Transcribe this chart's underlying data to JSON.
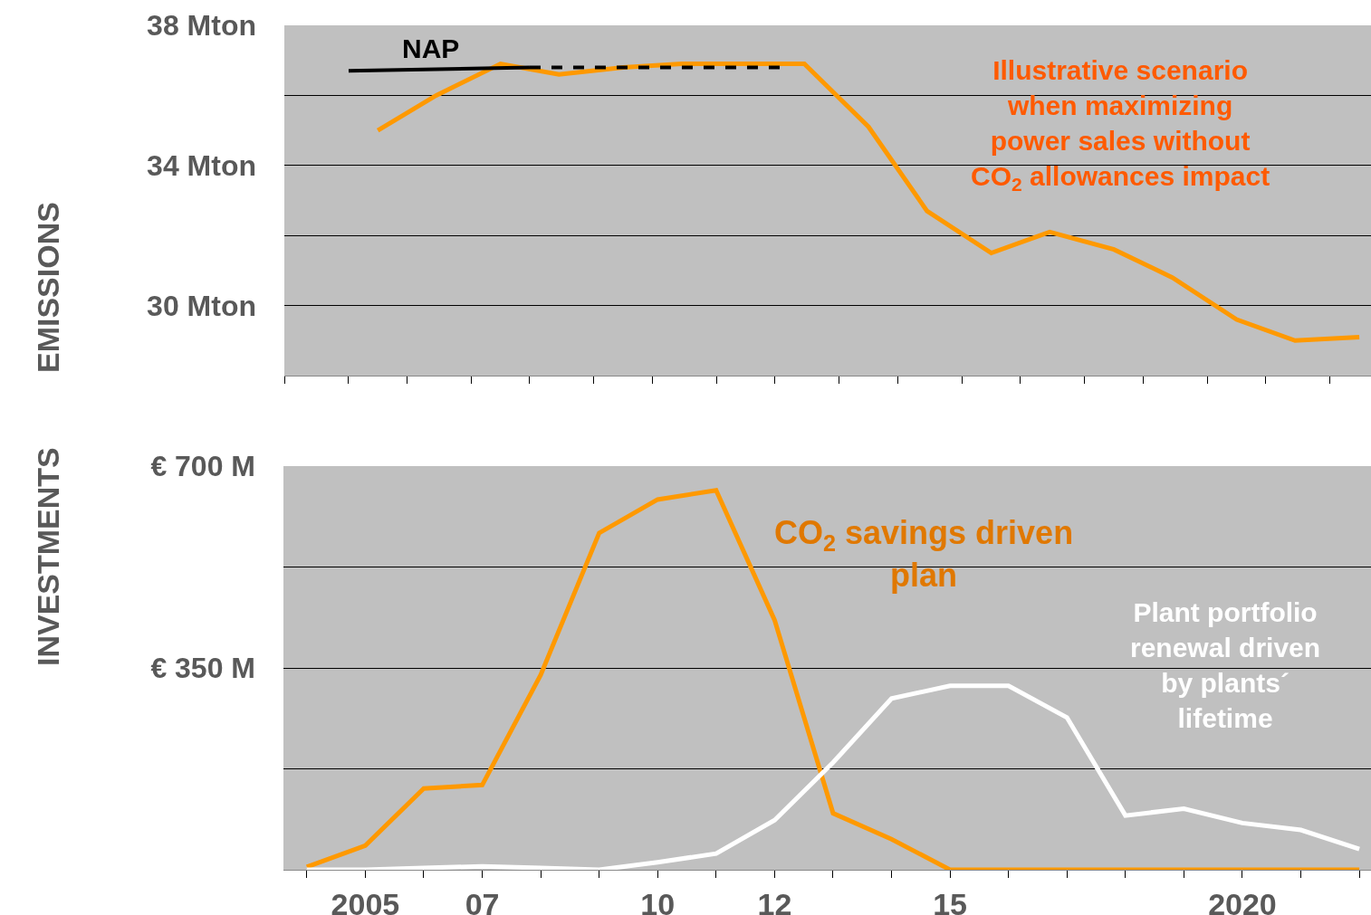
{
  "chart_data": [
    {
      "type": "line",
      "ylabel": "EMISSIONS",
      "xlim": [
        2003.6,
        2022.2
      ],
      "xticks": [
        {
          "value": 2003.6,
          "label": null
        },
        {
          "value": 2004.7,
          "label": null
        },
        {
          "value": 2005.7,
          "label": null
        },
        {
          "value": 2006.8,
          "label": null
        },
        {
          "value": 2007.8,
          "label": null
        },
        {
          "value": 2008.9,
          "label": null
        },
        {
          "value": 2009.9,
          "label": null
        },
        {
          "value": 2011.0,
          "label": null
        },
        {
          "value": 2012.0,
          "label": null
        },
        {
          "value": 2013.1,
          "label": null
        },
        {
          "value": 2014.1,
          "label": null
        },
        {
          "value": 2015.2,
          "label": null
        },
        {
          "value": 2016.2,
          "label": null
        },
        {
          "value": 2017.3,
          "label": null
        },
        {
          "value": 2018.3,
          "label": null
        },
        {
          "value": 2019.4,
          "label": null
        },
        {
          "value": 2020.4,
          "label": null
        },
        {
          "value": 2021.5,
          "label": null
        }
      ],
      "ylim": [
        28,
        38
      ],
      "yticks": [
        {
          "value": 30,
          "label": "30 Mton"
        },
        {
          "value": 32,
          "label": null
        },
        {
          "value": 34,
          "label": "34 Mton"
        },
        {
          "value": 36,
          "label": null
        },
        {
          "value": 38,
          "label": "38 Mton"
        }
      ],
      "grid": "y",
      "tick_labels": "y",
      "series": [
        {
          "color": "#ff9900",
          "x": [
            2005.2,
            2006.2,
            2007.3,
            2008.3,
            2009.4,
            2010.4,
            2011.5,
            2012.5,
            2013.6,
            2014.6,
            2015.7,
            2016.7,
            2017.8,
            2018.8,
            2019.9,
            2020.9,
            2022.0
          ],
          "values": [
            35.0,
            36.0,
            36.9,
            36.6,
            36.8,
            36.9,
            36.9,
            36.9,
            35.1,
            32.7,
            31.5,
            32.1,
            31.6,
            30.8,
            29.6,
            29.0,
            29.1
          ]
        },
        {
          "name": "NAP",
          "color": "#000000",
          "x": [
            2004.7,
            2007.8
          ],
          "values": [
            36.7,
            36.8
          ]
        },
        {
          "color": "#000000",
          "x": [
            2007.8,
            2012.1
          ],
          "values": [
            36.8,
            36.8
          ],
          "line_style": "dashed"
        }
      ],
      "annotations": [
        "Illustrative scenario\nwhen maximizing\npower sales without\nCO$_{2}$ allowances impact"
      ]
    },
    {
      "type": "line",
      "ylabel": "INVESTMENTS",
      "xlim": [
        2003.6,
        2022.2
      ],
      "xticks": [
        {
          "value": 2004,
          "label": null
        },
        {
          "value": 2005,
          "label": "2005"
        },
        {
          "value": 2006,
          "label": null
        },
        {
          "value": 2007,
          "label": "07"
        },
        {
          "value": 2008,
          "label": null
        },
        {
          "value": 2009,
          "label": null
        },
        {
          "value": 2010,
          "label": "10"
        },
        {
          "value": 2011,
          "label": null
        },
        {
          "value": 2012,
          "label": "12"
        },
        {
          "value": 2013,
          "label": null
        },
        {
          "value": 2014,
          "label": null
        },
        {
          "value": 2015,
          "label": "15"
        },
        {
          "value": 2016,
          "label": null
        },
        {
          "value": 2017,
          "label": null
        },
        {
          "value": 2018,
          "label": null
        },
        {
          "value": 2019,
          "label": null
        },
        {
          "value": 2020,
          "label": "2020"
        },
        {
          "value": 2021,
          "label": null
        },
        {
          "value": 2022,
          "label": null
        }
      ],
      "ylim": [
        0,
        700
      ],
      "yticks": [
        {
          "value": 0,
          "label": null
        },
        {
          "value": 175,
          "label": null
        },
        {
          "value": 350,
          "label": "€ 350 M"
        },
        {
          "value": 525,
          "label": null
        },
        {
          "value": 700,
          "label": "€ 700 M"
        }
      ],
      "grid": "y",
      "series": [
        {
          "color": "#ff9900",
          "x": [
            2004,
            2005,
            2006,
            2007,
            2008,
            2009,
            2010,
            2011,
            2012,
            2013,
            2014,
            2015,
            2016,
            2017,
            2018,
            2019,
            2020,
            2021,
            2022
          ],
          "values": [
            5,
            42,
            141,
            147,
            338,
            584,
            642,
            658,
            433,
            98,
            53,
            0,
            0,
            0,
            0,
            0,
            0,
            0,
            0
          ]
        },
        {
          "color": "#ffffff",
          "x": [
            2004,
            2005,
            2006,
            2007,
            2008,
            2009,
            2010,
            2011,
            2012,
            2013,
            2014,
            2015,
            2016,
            2017,
            2018,
            2019,
            2020,
            2021,
            2022
          ],
          "values": [
            0,
            0,
            3,
            6,
            3,
            0,
            13,
            28,
            86,
            186,
            297,
            319,
            319,
            264,
            94,
            106,
            81,
            69,
            36
          ]
        }
      ],
      "annotations": [
        "CO$_{2}$ savings driven\nplan",
        "Plant portfolio\nrenewal driven\nby plants´\nlifetime"
      ]
    }
  ]
}
